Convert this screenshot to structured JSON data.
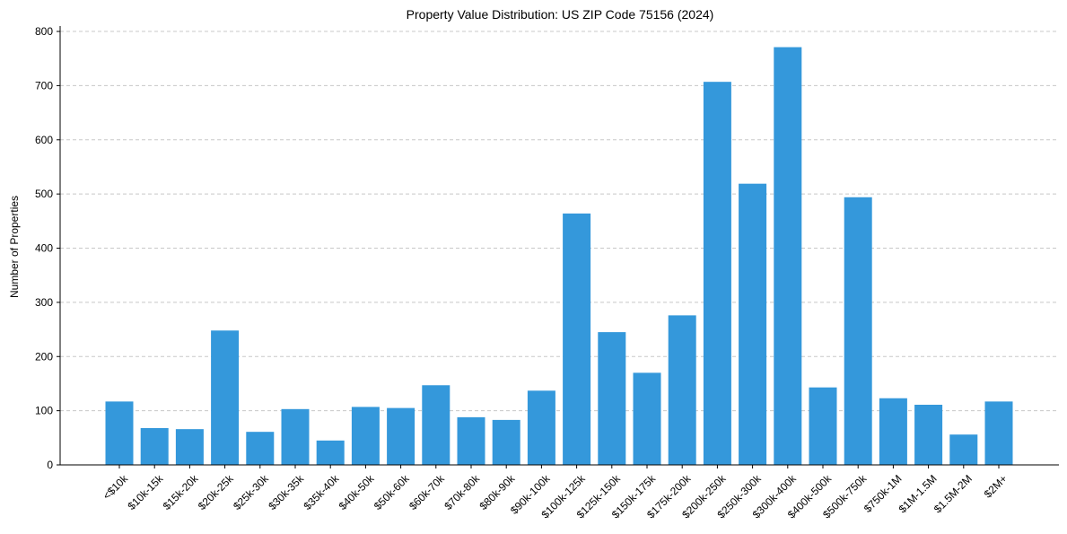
{
  "chart_data": {
    "type": "bar",
    "title": "Property Value Distribution: US ZIP Code 75156 (2024)",
    "xlabel": "",
    "ylabel": "Number of Properties",
    "ylim": [
      0,
      810
    ],
    "yticks": [
      0,
      100,
      200,
      300,
      400,
      500,
      600,
      700,
      800
    ],
    "grid": "y-dashed",
    "categories": [
      "<$10k",
      "$10k-15k",
      "$15k-20k",
      "$20k-25k",
      "$25k-30k",
      "$30k-35k",
      "$35k-40k",
      "$40k-50k",
      "$50k-60k",
      "$60k-70k",
      "$70k-80k",
      "$80k-90k",
      "$90k-100k",
      "$100k-125k",
      "$125k-150k",
      "$150k-175k",
      "$175k-200k",
      "$200k-250k",
      "$250k-300k",
      "$300k-400k",
      "$400k-500k",
      "$500k-750k",
      "$750k-1M",
      "$1M-1.5M",
      "$1.5M-2M",
      "$2M+"
    ],
    "values": [
      117,
      68,
      66,
      248,
      61,
      103,
      45,
      107,
      105,
      147,
      88,
      83,
      137,
      464,
      245,
      170,
      276,
      707,
      519,
      771,
      143,
      494,
      123,
      111,
      56,
      117
    ],
    "colors": {
      "bar": "#3498db",
      "grid": "#c8c8c8",
      "axis": "#000000"
    }
  }
}
